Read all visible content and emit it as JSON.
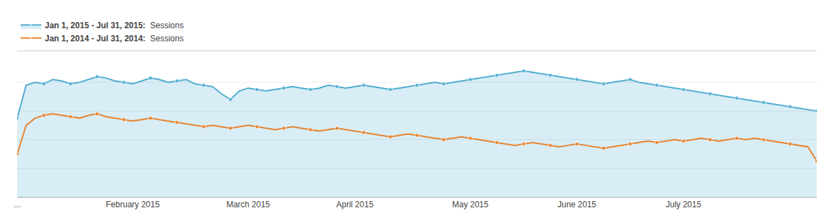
{
  "chart_data": {
    "type": "line",
    "categories": [
      "...",
      null,
      null,
      null,
      null,
      null,
      null,
      null,
      null,
      null,
      null,
      null,
      null,
      "February 2015",
      null,
      null,
      null,
      null,
      null,
      null,
      null,
      null,
      null,
      null,
      null,
      null,
      "March 2015",
      null,
      null,
      null,
      null,
      null,
      null,
      null,
      null,
      null,
      null,
      null,
      "April 2015",
      null,
      null,
      null,
      null,
      null,
      null,
      null,
      null,
      null,
      null,
      null,
      null,
      "May 2015",
      null,
      null,
      null,
      null,
      null,
      null,
      null,
      null,
      null,
      null,
      null,
      "June 2015",
      null,
      null,
      null,
      null,
      null,
      null,
      null,
      null,
      null,
      null,
      null,
      "July 2015",
      null,
      null,
      null,
      null,
      null,
      null,
      null,
      null,
      null,
      null,
      null,
      null,
      null,
      null,
      null
    ],
    "series": [
      {
        "name": "Sessions",
        "period": "Jan 1, 2015 - Jul 31, 2015:",
        "color": "#4EACD1",
        "type": "area",
        "marker": "circle",
        "values": [
          55,
          78,
          80,
          79,
          82,
          81,
          79,
          80,
          82,
          84,
          83,
          81,
          80,
          79,
          81,
          83,
          82,
          80,
          81,
          82,
          79,
          78,
          77,
          72,
          68,
          74,
          76,
          75,
          74,
          75,
          76,
          77,
          76,
          75,
          76,
          78,
          77,
          76,
          77,
          78,
          77,
          76,
          75,
          76,
          77,
          78,
          79,
          80,
          79,
          80,
          81,
          82,
          83,
          84,
          85,
          86,
          87,
          88,
          87,
          86,
          85,
          84,
          83,
          82,
          81,
          80,
          79,
          80,
          81,
          82,
          80,
          79,
          78,
          77,
          76,
          75,
          74,
          73,
          72,
          71,
          70,
          69,
          68,
          67,
          66,
          65,
          64,
          63,
          62,
          61,
          60
        ]
      },
      {
        "name": "Sessions",
        "period": "Jan 1, 2014 - Jul 31, 2014:",
        "color": "#E8812A",
        "type": "line",
        "marker": "circle",
        "values": [
          30,
          50,
          55,
          57,
          58,
          57,
          56,
          55,
          57,
          58,
          56,
          55,
          54,
          53,
          54,
          55,
          54,
          53,
          52,
          51,
          50,
          49,
          50,
          49,
          48,
          49,
          50,
          49,
          48,
          47,
          48,
          49,
          48,
          47,
          46,
          47,
          48,
          47,
          46,
          45,
          44,
          43,
          42,
          43,
          44,
          43,
          42,
          41,
          40,
          41,
          42,
          41,
          40,
          39,
          38,
          37,
          36,
          37,
          38,
          37,
          36,
          35,
          36,
          37,
          36,
          35,
          34,
          35,
          36,
          37,
          38,
          39,
          38,
          39,
          40,
          39,
          40,
          41,
          40,
          39,
          40,
          41,
          40,
          41,
          40,
          39,
          38,
          37,
          36,
          35,
          25
        ]
      }
    ],
    "ylim": [
      0,
      100
    ],
    "yticks": [
      20,
      40,
      60,
      80
    ],
    "grid": true,
    "legend": "top left",
    "tick_labels": "x"
  }
}
